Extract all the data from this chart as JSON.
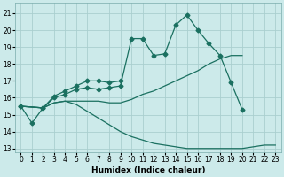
{
  "xlabel": "Humidex (Indice chaleur)",
  "bg_color": "#cceaea",
  "grid_color": "#aacfcf",
  "line_color": "#1a7060",
  "xlim": [
    -0.5,
    23.5
  ],
  "ylim": [
    12.8,
    21.6
  ],
  "yticks": [
    13,
    14,
    15,
    16,
    17,
    18,
    19,
    20,
    21
  ],
  "xticks": [
    0,
    1,
    2,
    3,
    4,
    5,
    6,
    7,
    8,
    9,
    10,
    11,
    12,
    13,
    14,
    15,
    16,
    17,
    18,
    19,
    20,
    21,
    22,
    23
  ],
  "line1_x": [
    0,
    1,
    2,
    3,
    4,
    5,
    6,
    7,
    8,
    9,
    10,
    11,
    12,
    13,
    14,
    15,
    16,
    17,
    18,
    19,
    20
  ],
  "line1_y": [
    15.5,
    14.5,
    15.4,
    16.0,
    16.2,
    16.5,
    16.6,
    16.5,
    16.6,
    16.7,
    19.5,
    19.5,
    18.5,
    18.6,
    20.3,
    20.9,
    20.0,
    19.2,
    18.5,
    16.9,
    15.3
  ],
  "line2_x": [
    0,
    2,
    3,
    4,
    5,
    6,
    7,
    8,
    9
  ],
  "line2_y": [
    15.5,
    15.4,
    16.1,
    16.4,
    16.7,
    17.0,
    17.0,
    16.9,
    17.0
  ],
  "line3_x": [
    0,
    2,
    3,
    4,
    5,
    6,
    7,
    8,
    9,
    10,
    11,
    12,
    13,
    14,
    15,
    16,
    17,
    18,
    19,
    20
  ],
  "line3_y": [
    15.5,
    15.4,
    15.7,
    15.8,
    15.8,
    15.8,
    15.8,
    15.7,
    15.7,
    15.9,
    16.2,
    16.4,
    16.7,
    17.0,
    17.3,
    17.6,
    18.0,
    18.3,
    18.5,
    18.5
  ],
  "line4_x": [
    0,
    2,
    3,
    4,
    5,
    6,
    7,
    8,
    9,
    10,
    11,
    12,
    13,
    14,
    15,
    16,
    17,
    18,
    19,
    20,
    22,
    23
  ],
  "line4_y": [
    15.5,
    15.4,
    15.7,
    15.8,
    15.6,
    15.2,
    14.8,
    14.4,
    14.0,
    13.7,
    13.5,
    13.3,
    13.2,
    13.1,
    13.0,
    13.0,
    13.0,
    13.0,
    13.0,
    13.0,
    13.2,
    13.2
  ],
  "xlabel_fontsize": 6.5,
  "tick_fontsize": 5.5
}
